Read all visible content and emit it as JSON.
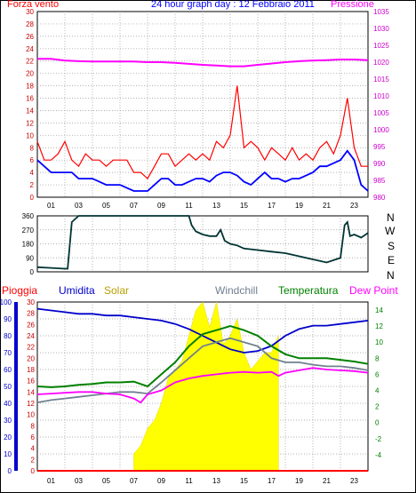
{
  "header": {
    "wind_label": "Forza vento",
    "title": "24 hour graph day : 12 Febbraio 2011",
    "pressure_label": "Pressione"
  },
  "direction_labels": [
    "N",
    "W",
    "S",
    "E",
    "N"
  ],
  "bottom_header": {
    "rain": "Pioggia",
    "humidity": "Umidita",
    "solar": "Solar",
    "windchill": "Windchill",
    "temperature": "Temperatura",
    "dewpoint": "Dew Point"
  },
  "markers": {
    "sunrise": "sunrise",
    "sunset": "sunset"
  },
  "colors": {
    "wind_max": "#ff0000",
    "wind_avg": "#0000ff",
    "pressure": "#ff00ff",
    "direction": "#003333",
    "humidity": "#0000cc",
    "solar": "#ffff00",
    "windchill": "#708090",
    "temperature": "#008000",
    "dewpoint": "#ff00ff",
    "rain": "#ff0000"
  },
  "chart_data": [
    {
      "type": "line",
      "panel": "wind_pressure",
      "x_ticks": [
        "01",
        "03",
        "05",
        "07",
        "09",
        "11",
        "13",
        "15",
        "17",
        "19",
        "21",
        "23"
      ],
      "y_left_ticks": [
        "0",
        "2",
        "4",
        "6",
        "8",
        "10",
        "12",
        "14",
        "16",
        "18",
        "20",
        "22",
        "24",
        "26",
        "28",
        "30"
      ],
      "y_right_ticks": [
        "980",
        "985",
        "990",
        "995",
        "1000",
        "1005",
        "1010",
        "1015",
        "1020",
        "1025",
        "1030",
        "1035"
      ],
      "y_left_range": [
        0,
        30
      ],
      "y_right_range": [
        980,
        1035
      ],
      "x_range": [
        0,
        24
      ],
      "series": [
        {
          "name": "Forza vento",
          "axis": "left",
          "style": "spikes",
          "x": [
            0,
            0.5,
            1,
            1.5,
            2,
            2.5,
            3,
            3.5,
            4,
            4.5,
            5,
            5.5,
            6,
            6.5,
            7,
            7.5,
            8,
            8.5,
            9,
            9.5,
            10,
            10.5,
            11,
            11.5,
            12,
            12.5,
            13,
            13.5,
            14,
            14.5,
            15,
            15.5,
            16,
            16.5,
            17,
            17.5,
            18,
            18.5,
            19,
            19.5,
            20,
            20.5,
            21,
            21.5,
            22,
            22.5,
            23,
            23.5,
            24
          ],
          "y": [
            9,
            6,
            6,
            7,
            9,
            6,
            5,
            7,
            6,
            6,
            5,
            6,
            6,
            6,
            4,
            4,
            3,
            5,
            7,
            7,
            5,
            6,
            7,
            6,
            7,
            6,
            9,
            8,
            10,
            18,
            8,
            9,
            8,
            6,
            8,
            7,
            6,
            8,
            6,
            7,
            6,
            8,
            9,
            7,
            10,
            16,
            8,
            5,
            5
          ]
        },
        {
          "name": "",
          "axis": "left",
          "style": "line",
          "x": [
            0,
            0.5,
            1,
            1.5,
            2,
            2.5,
            3,
            3.5,
            4,
            4.5,
            5,
            5.5,
            6,
            6.5,
            7,
            7.5,
            8,
            8.5,
            9,
            9.5,
            10,
            10.5,
            11,
            11.5,
            12,
            12.5,
            13,
            13.5,
            14,
            14.5,
            15,
            15.5,
            16,
            16.5,
            17,
            17.5,
            18,
            18.5,
            19,
            19.5,
            20,
            20.5,
            21,
            21.5,
            22,
            22.5,
            23,
            23.5,
            24
          ],
          "y": [
            6,
            5,
            4,
            4,
            4,
            4,
            3,
            3,
            3,
            2.5,
            2,
            2,
            2,
            1.5,
            1,
            1,
            1,
            2,
            3,
            3,
            2,
            2,
            2.5,
            3,
            3,
            2.5,
            3.5,
            4,
            4,
            3.5,
            2.5,
            2,
            3,
            4,
            3,
            3,
            2.5,
            3,
            3,
            3.5,
            4,
            5,
            5,
            5.5,
            6,
            7.5,
            6,
            2,
            1
          ]
        },
        {
          "name": "Pressione",
          "axis": "right",
          "style": "line",
          "x": [
            0,
            1,
            2,
            3,
            4,
            5,
            6,
            7,
            8,
            9,
            10,
            11,
            12,
            13,
            14,
            15,
            16,
            17,
            18,
            19,
            20,
            21,
            22,
            23,
            24
          ],
          "y": [
            1021,
            1021,
            1020.5,
            1020.3,
            1020.2,
            1020.2,
            1020.2,
            1020.2,
            1020,
            1020,
            1019.8,
            1019.5,
            1019.2,
            1019,
            1018.8,
            1018.8,
            1019.2,
            1019.6,
            1020,
            1020.3,
            1020.5,
            1020.6,
            1020.8,
            1020.8,
            1020.6
          ]
        }
      ]
    },
    {
      "type": "line",
      "panel": "wind_direction",
      "x_range": [
        0,
        24
      ],
      "y_ticks": [
        "0",
        "90",
        "180",
        "270",
        "360"
      ],
      "y_range": [
        0,
        360
      ],
      "series": [
        {
          "name": "",
          "x": [
            0,
            1,
            2,
            2.2,
            2.5,
            3,
            4,
            5,
            6,
            7,
            8,
            9,
            10,
            11,
            11.2,
            11.5,
            12,
            12.5,
            13,
            13.3,
            13.6,
            14,
            14.5,
            15,
            16,
            17,
            18,
            19,
            20,
            21,
            22,
            22.3,
            22.5,
            22.7,
            23,
            23.5,
            24
          ],
          "y": [
            30,
            25,
            20,
            20,
            320,
            360,
            360,
            360,
            360,
            360,
            360,
            360,
            360,
            360,
            300,
            260,
            240,
            230,
            230,
            270,
            200,
            180,
            170,
            150,
            140,
            130,
            120,
            100,
            80,
            60,
            90,
            300,
            320,
            230,
            240,
            220,
            250
          ]
        }
      ]
    },
    {
      "type": "line",
      "panel": "weather",
      "x_ticks": [
        "01",
        "03",
        "05",
        "07",
        "09",
        "11",
        "13",
        "15",
        "17",
        "19",
        "21",
        "23"
      ],
      "y_left_ticks": [
        "0",
        "10",
        "20",
        "30",
        "40",
        "50",
        "60",
        "70",
        "80",
        "90",
        "100"
      ],
      "y_mid_ticks": [
        "0",
        "2",
        "4",
        "6",
        "8",
        "10",
        "12",
        "14",
        "16",
        "18",
        "20",
        "22",
        "24",
        "26",
        "28",
        "30"
      ],
      "y_right_ticks": [
        "-4",
        "-2",
        "0",
        "2",
        "4",
        "6",
        "8",
        "10",
        "12",
        "14"
      ],
      "y_left_range": [
        0,
        100
      ],
      "y_mid_range": [
        0,
        30
      ],
      "y_right_range": [
        -6,
        15
      ],
      "x_range": [
        0,
        24
      ],
      "series": [
        {
          "name": "Umidita",
          "axis": "left",
          "x": [
            0,
            1,
            2,
            3,
            4,
            5,
            6,
            7,
            8,
            9,
            10,
            11,
            12,
            13,
            14,
            15,
            16,
            17,
            18,
            19,
            20,
            21,
            22,
            23,
            24
          ],
          "y": [
            96,
            95,
            94,
            93,
            93,
            92,
            92,
            91,
            90,
            89,
            87,
            84,
            80,
            76,
            72,
            70,
            71,
            74,
            80,
            84,
            86,
            86,
            87,
            88,
            89
          ]
        },
        {
          "name": "Solar",
          "axis": "left",
          "style": "area",
          "x": [
            7,
            7.5,
            8,
            8.5,
            9,
            9.5,
            10,
            10.5,
            11,
            11.5,
            12,
            12.5,
            13,
            13.5,
            14,
            14.5,
            15,
            15.5,
            16,
            16.5,
            17,
            17.5
          ],
          "y": [
            10,
            15,
            25,
            30,
            40,
            55,
            60,
            65,
            80,
            95,
            100,
            85,
            100,
            75,
            80,
            90,
            70,
            60,
            65,
            70,
            70,
            80
          ]
        },
        {
          "name": "Windchill",
          "axis": "right",
          "x": [
            0,
            1,
            2,
            3,
            4,
            5,
            6,
            7,
            8,
            9,
            10,
            11,
            12,
            13,
            14,
            15,
            16,
            17,
            18,
            19,
            20,
            21,
            22,
            23,
            24
          ],
          "y": [
            2.5,
            2.8,
            3,
            3.2,
            3.4,
            3.6,
            3.8,
            3.8,
            3.6,
            5,
            6.5,
            8,
            9.5,
            10,
            10.5,
            10,
            9.5,
            8,
            7.5,
            7.5,
            7.2,
            7,
            7,
            6.8,
            6.5
          ]
        },
        {
          "name": "Temperatura",
          "axis": "right",
          "x": [
            0,
            1,
            2,
            3,
            4,
            5,
            6,
            7,
            8,
            9,
            10,
            11,
            12,
            13,
            14,
            15,
            16,
            17,
            18,
            19,
            20,
            21,
            22,
            23,
            24
          ],
          "y": [
            4.5,
            4.4,
            4.5,
            4.7,
            4.8,
            5,
            5,
            5.1,
            4.5,
            6,
            7.5,
            9.5,
            11,
            11.5,
            12,
            11.5,
            10.8,
            9.5,
            8.5,
            8,
            8,
            8,
            7.8,
            7.6,
            7.3
          ]
        },
        {
          "name": "Dew Point",
          "axis": "right",
          "x": [
            0,
            1,
            2,
            3,
            4,
            5,
            6,
            7,
            7.5,
            8,
            9,
            10,
            11,
            12,
            13,
            14,
            15,
            16,
            17,
            17.5,
            18,
            19,
            20,
            21,
            22,
            23,
            24
          ],
          "y": [
            3.5,
            3.6,
            3.7,
            3.8,
            3.8,
            3.6,
            3.5,
            3,
            2.5,
            3.5,
            4,
            5,
            5.5,
            5.8,
            6,
            6.2,
            6.3,
            6.2,
            6.3,
            5.8,
            6.2,
            6.5,
            6.8,
            6.6,
            6.5,
            6.4,
            6.2
          ]
        },
        {
          "name": "Pioggia",
          "axis": "mid",
          "style": "line",
          "x": [
            0,
            24
          ],
          "y": [
            0,
            0
          ]
        }
      ]
    }
  ]
}
